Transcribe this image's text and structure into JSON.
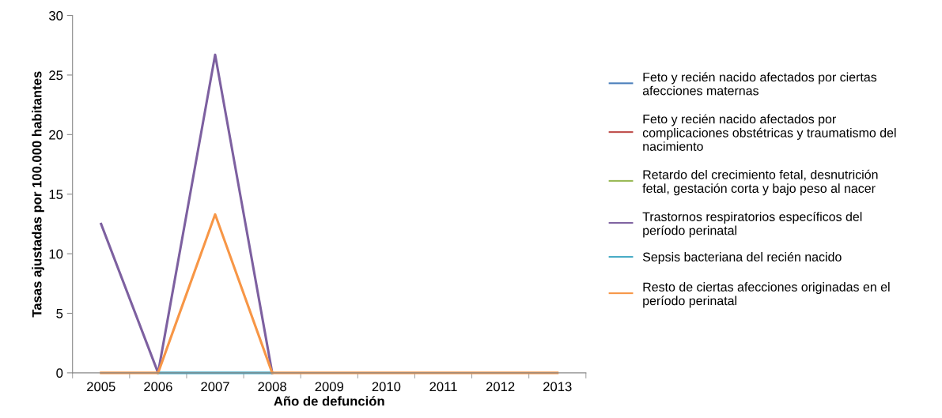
{
  "chart_data": {
    "type": "line",
    "xlabel": "Año de defunción",
    "ylabel": "Tasas ajustadas por 100.000 habitantes",
    "categories": [
      "2005",
      "2006",
      "2007",
      "2008",
      "2009",
      "2010",
      "2011",
      "2012",
      "2013"
    ],
    "ylim": [
      0,
      30
    ],
    "yticks": [
      0,
      5,
      10,
      15,
      20,
      25,
      30
    ],
    "grid": false,
    "legend": "right",
    "marker": "none",
    "line_style": "solid",
    "series": [
      {
        "name": "Feto y recién nacido afectados por ciertas afecciones maternas",
        "color": "#4a7ebb",
        "values": [
          null,
          null,
          null,
          null,
          null,
          null,
          null,
          null,
          null
        ]
      },
      {
        "name": "Feto y recién nacido afectados por complicaciones obstétricas y traumatismo del nacimiento",
        "color": "#be4b48",
        "values": [
          null,
          null,
          null,
          null,
          null,
          null,
          null,
          null,
          null
        ]
      },
      {
        "name": "Retardo del crecimiento fetal, desnutrición fetal, gestación corta y bajo peso al nacer",
        "color": "#98b954",
        "values": [
          null,
          null,
          null,
          null,
          null,
          null,
          null,
          null,
          null
        ]
      },
      {
        "name": "Trastornos respiratorios específicos del período perinatal",
        "color": "#7d60a0",
        "values": [
          12.5,
          0,
          26.7,
          0,
          null,
          null,
          null,
          null,
          null
        ]
      },
      {
        "name": "Sepsis bacteriana del recién nacido",
        "color": "#46aac5",
        "values": [
          null,
          0,
          0,
          0,
          null,
          null,
          null,
          null,
          null
        ]
      },
      {
        "name": "Resto de ciertas afecciones originadas en el período perinatal",
        "color": "#f79646",
        "values": [
          0,
          0,
          13.3,
          0,
          0,
          0,
          0,
          0,
          0
        ]
      }
    ]
  }
}
